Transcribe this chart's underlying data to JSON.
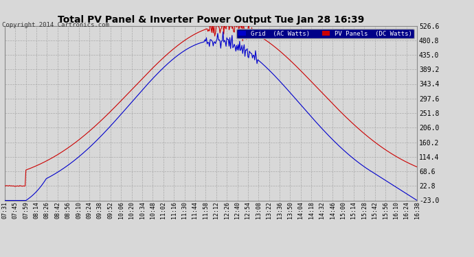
{
  "title": "Total PV Panel & Inverter Power Output Tue Jan 28 16:39",
  "copyright": "Copyright 2014 Cartronics.com",
  "legend_labels": [
    "Grid  (AC Watts)",
    "PV Panels  (DC Watts)"
  ],
  "yticks": [
    -23.0,
    22.8,
    68.6,
    114.4,
    160.2,
    206.0,
    251.8,
    297.6,
    343.4,
    389.2,
    435.0,
    480.8,
    526.6
  ],
  "ylim": [
    -23.0,
    526.6
  ],
  "xtick_labels": [
    "07:31",
    "07:45",
    "07:59",
    "08:14",
    "08:26",
    "08:42",
    "08:56",
    "09:10",
    "09:24",
    "09:38",
    "09:52",
    "10:06",
    "10:20",
    "10:34",
    "10:48",
    "11:02",
    "11:16",
    "11:30",
    "11:44",
    "11:58",
    "12:12",
    "12:26",
    "12:40",
    "12:54",
    "13:08",
    "13:22",
    "13:36",
    "13:50",
    "14:04",
    "14:18",
    "14:32",
    "14:46",
    "15:00",
    "15:14",
    "15:28",
    "15:42",
    "15:56",
    "16:10",
    "16:24",
    "16:38"
  ],
  "bg_color": "#d8d8d8",
  "grid_color": "#aaaaaa",
  "title_color": "#000000",
  "blue_color": "#0000cc",
  "red_color": "#cc0000",
  "legend_bg": "#000088"
}
